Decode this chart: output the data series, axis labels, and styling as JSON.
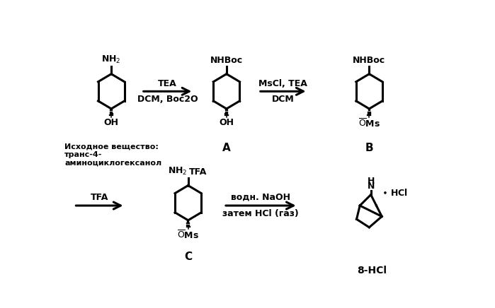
{
  "background_color": "#ffffff",
  "text_color": "#000000",
  "sm_label": "Исходное вещество:\nтранс-4-\nаминоциклогексанол",
  "A_label": "A",
  "B_label": "B",
  "C_label": "C",
  "product_label": "8-HCl",
  "arrow1_top": "TEA",
  "arrow1_bot": "DCM, Boc2O",
  "arrow2_top": "MsCl, TEA",
  "arrow2_bot": "DCM",
  "arrow3_top": "TFA",
  "arrow4_top": "водн. NaOH",
  "arrow4_bot": "затем HCl (газ)",
  "lw": 1.6,
  "lw_bold": 2.2
}
